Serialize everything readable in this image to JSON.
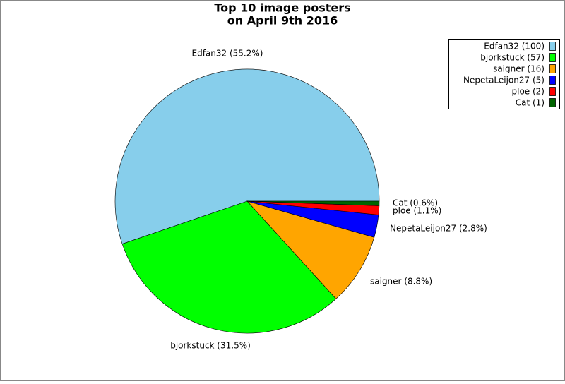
{
  "chart_data": {
    "type": "pie",
    "title": [
      "Top 10 image posters",
      "on April 9th 2016"
    ],
    "categories": [
      "Edfan32",
      "bjorkstuck",
      "saigner",
      "NepetaLeijon27",
      "ploe",
      "Cat"
    ],
    "values": [
      100,
      57,
      16,
      5,
      2,
      1
    ],
    "value_labels": [
      "Edfan32 (55.2%)",
      "bjorkstuck (31.5%)",
      "saigner (8.8%)",
      "NepetaLeijon27 (2.8%)",
      "ploe (1.1%)",
      "Cat (0.6%)"
    ],
    "legend_labels": [
      "Edfan32 (100)",
      "bjorkstuck (57)",
      "saigner (16)",
      "NepetaLeijon27 (5)",
      "ploe (2)",
      "Cat (1)"
    ],
    "colors": [
      "#87ceeb",
      "#00ff00",
      "#ffa500",
      "#0000ff",
      "#ff0000",
      "#006400"
    ],
    "legend": "upper right"
  }
}
